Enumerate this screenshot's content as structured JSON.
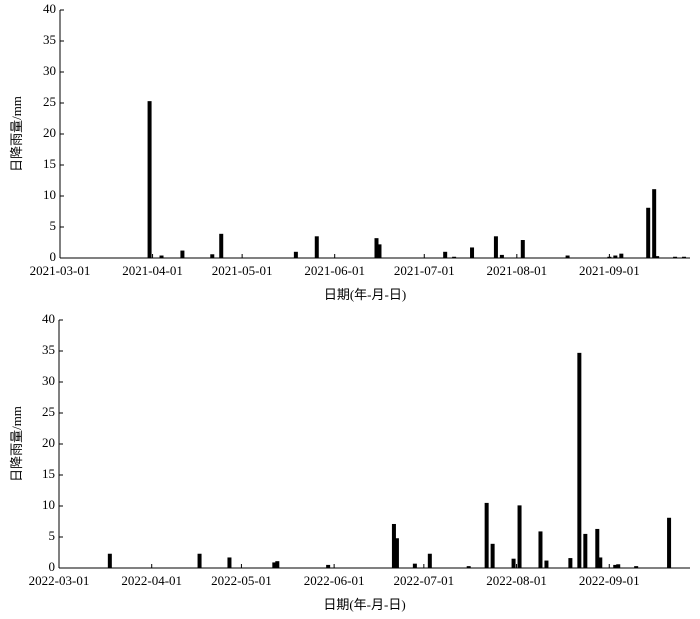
{
  "chart_data": [
    {
      "type": "bar",
      "xlabel": "日期(年-月-日)",
      "ylabel": "日降雨量/mm",
      "color": "#000000",
      "xlim": [
        "2021-03-01",
        "2021-09-28"
      ],
      "ylim": [
        0,
        40
      ],
      "yticks": [
        0,
        5,
        10,
        15,
        20,
        25,
        30,
        35,
        40
      ],
      "xticks": [
        "2021-03-01",
        "2021-04-01",
        "2021-05-01",
        "2021-06-01",
        "2021-07-01",
        "2021-08-01",
        "2021-09-01"
      ],
      "x": [
        "2021-03-31",
        "2021-04-04",
        "2021-04-11",
        "2021-04-21",
        "2021-04-24",
        "2021-05-19",
        "2021-05-26",
        "2021-06-15",
        "2021-06-16",
        "2021-07-08",
        "2021-07-11",
        "2021-07-17",
        "2021-07-25",
        "2021-07-27",
        "2021-08-03",
        "2021-08-18",
        "2021-09-01",
        "2021-09-03",
        "2021-09-05",
        "2021-09-14",
        "2021-09-16",
        "2021-09-17",
        "2021-09-23",
        "2021-09-26"
      ],
      "values": [
        25.3,
        0.4,
        1.2,
        0.6,
        3.9,
        1.0,
        3.5,
        3.2,
        2.2,
        1.0,
        0.2,
        1.7,
        3.5,
        0.5,
        2.9,
        0.4,
        0.2,
        0.4,
        0.7,
        8.1,
        11.1,
        0.3,
        0.2,
        0.2
      ]
    },
    {
      "type": "bar",
      "xlabel": "日期(年-月-日)",
      "ylabel": "日降雨量/mm",
      "color": "#000000",
      "xlim": [
        "2022-03-01",
        "2022-09-28"
      ],
      "ylim": [
        0,
        40
      ],
      "yticks": [
        0,
        5,
        10,
        15,
        20,
        25,
        30,
        35,
        40
      ],
      "xticks": [
        "2022-03-01",
        "2022-04-01",
        "2022-05-01",
        "2022-06-01",
        "2022-07-01",
        "2022-08-01",
        "2022-09-01"
      ],
      "x": [
        "2022-03-18",
        "2022-04-17",
        "2022-04-27",
        "2022-05-12",
        "2022-05-13",
        "2022-05-30",
        "2022-06-21",
        "2022-06-22",
        "2022-06-28",
        "2022-07-03",
        "2022-07-16",
        "2022-07-22",
        "2022-07-24",
        "2022-07-31",
        "2022-08-02",
        "2022-08-09",
        "2022-08-11",
        "2022-08-19",
        "2022-08-22",
        "2022-08-24",
        "2022-08-28",
        "2022-08-29",
        "2022-09-03",
        "2022-09-04",
        "2022-09-10",
        "2022-09-21"
      ],
      "values": [
        2.3,
        2.3,
        1.7,
        0.9,
        1.1,
        0.5,
        7.1,
        4.8,
        0.7,
        2.3,
        0.3,
        10.5,
        3.9,
        1.5,
        10.1,
        5.9,
        1.2,
        1.6,
        34.7,
        5.5,
        6.3,
        1.7,
        0.5,
        0.6,
        0.3,
        8.1
      ]
    }
  ]
}
